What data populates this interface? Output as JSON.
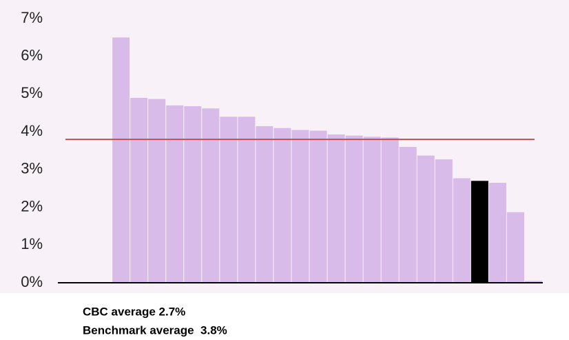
{
  "chart_data": {
    "type": "bar",
    "categories": [
      null,
      null,
      null,
      null,
      null,
      null,
      null,
      null,
      null,
      null,
      null,
      null,
      null,
      null,
      null,
      null,
      null,
      null,
      null,
      null,
      null,
      null,
      null,
      null,
      null,
      null,
      null
    ],
    "values": [
      null,
      null,
      null,
      6.5,
      4.9,
      4.87,
      4.7,
      4.68,
      4.62,
      4.4,
      4.4,
      4.15,
      4.1,
      4.05,
      4.03,
      3.93,
      3.9,
      3.87,
      3.85,
      3.6,
      3.37,
      3.27,
      2.77,
      2.7,
      2.65,
      1.87,
      0.05
    ],
    "colors": [
      null,
      null,
      null,
      "#d9bbe9",
      "#d9bbe9",
      "#d9bbe9",
      "#d9bbe9",
      "#d9bbe9",
      "#d9bbe9",
      "#d9bbe9",
      "#d9bbe9",
      "#d9bbe9",
      "#d9bbe9",
      "#d9bbe9",
      "#d9bbe9",
      "#d9bbe9",
      "#d9bbe9",
      "#d9bbe9",
      "#d9bbe9",
      "#d9bbe9",
      "#d9bbe9",
      "#d9bbe9",
      "#d9bbe9",
      "#000000",
      "#d9bbe9",
      "#d9bbe9",
      "#d9bbe9"
    ],
    "ylim": [
      0,
      7
    ],
    "yticks": [
      {
        "value": 0,
        "label": "0%"
      },
      {
        "value": 1,
        "label": "1%"
      },
      {
        "value": 2,
        "label": "2%"
      },
      {
        "value": 3,
        "label": "3%"
      },
      {
        "value": 4,
        "label": "4%"
      },
      {
        "value": 5,
        "label": "5%"
      },
      {
        "value": 6,
        "label": "6%"
      },
      {
        "value": 7,
        "label": "7%"
      }
    ],
    "reference_line": {
      "value": 3.8,
      "color": "#c0504d"
    },
    "annotations": [
      "CBC average 2.7%",
      "Benchmark average  3.8%"
    ]
  }
}
